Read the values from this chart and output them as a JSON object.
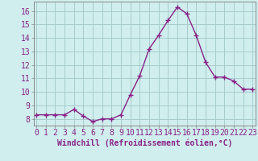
{
  "x": [
    0,
    1,
    2,
    3,
    4,
    5,
    6,
    7,
    8,
    9,
    10,
    11,
    12,
    13,
    14,
    15,
    16,
    17,
    18,
    19,
    20,
    21,
    22,
    23
  ],
  "y": [
    8.3,
    8.3,
    8.3,
    8.3,
    8.7,
    8.2,
    7.8,
    8.0,
    8.0,
    8.3,
    9.8,
    11.2,
    13.2,
    14.2,
    15.3,
    16.3,
    15.8,
    14.2,
    12.2,
    11.1,
    11.1,
    10.8,
    10.2,
    10.2
  ],
  "line_color": "#882288",
  "marker": "+",
  "marker_size": 4,
  "marker_linewidth": 1.0,
  "line_width": 1.0,
  "bg_color": "#d0eeee",
  "grid_color": "#a8cccc",
  "xlabel": "Windchill (Refroidissement éolien,°C)",
  "xlabel_fontsize": 7,
  "tick_fontsize": 7,
  "ylim": [
    7.5,
    16.7
  ],
  "yticks": [
    8,
    9,
    10,
    11,
    12,
    13,
    14,
    15,
    16
  ],
  "xticks": [
    0,
    1,
    2,
    3,
    4,
    5,
    6,
    7,
    8,
    9,
    10,
    11,
    12,
    13,
    14,
    15,
    16,
    17,
    18,
    19,
    20,
    21,
    22,
    23
  ],
  "xlim": [
    -0.3,
    23.3
  ]
}
